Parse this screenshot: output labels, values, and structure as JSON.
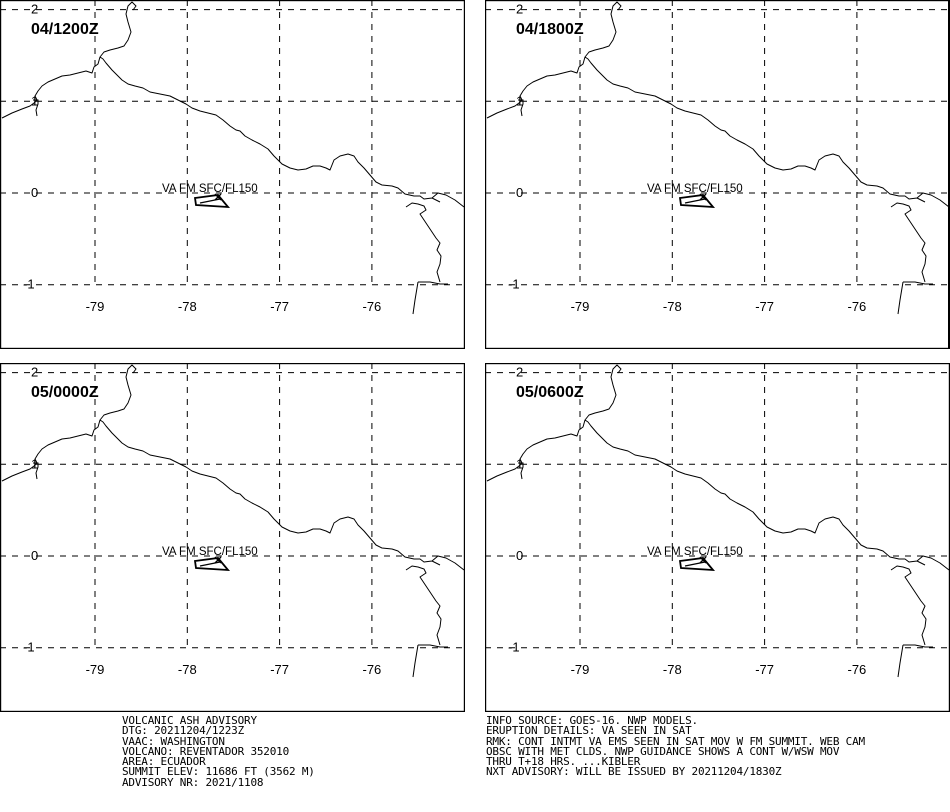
{
  "panels": [
    {
      "time_label": "04/1200Z",
      "ash_label": "VA FM SFC/FL150"
    },
    {
      "time_label": "04/1800Z",
      "ash_label": "VA FM SFC/FL150"
    },
    {
      "time_label": "05/0000Z",
      "ash_label": "VA FM SFC/FL150"
    },
    {
      "time_label": "05/0600Z",
      "ash_label": "VA FM SFC/FL150"
    }
  ],
  "grid": {
    "longitudes": [
      -79,
      -78,
      -77,
      -76
    ],
    "longitude_labels": [
      "-79",
      "-78",
      "-77",
      "-76"
    ],
    "latitudes": [
      2,
      1,
      0,
      -1
    ],
    "latitude_labels": [
      "2",
      "1",
      "0",
      "-1"
    ]
  },
  "advisory": {
    "left_lines": [
      "VOLCANIC ASH ADVISORY",
      "DTG: 20211204/1223Z",
      "VAAC: WASHINGTON",
      "VOLCANO: REVENTADOR 352010",
      "AREA: ECUADOR",
      "SUMMIT ELEV: 11686 FT (3562 M)",
      "ADVISORY NR: 2021/1108"
    ],
    "right_lines": [
      "INFO SOURCE: GOES-16. NWP MODELS.",
      "ERUPTION DETAILS: VA SEEN IN SAT",
      "RMK: CONT INTMT VA EMS SEEN IN SAT MOV W FM SUMMIT. WEB CAM",
      "OBSC WITH MET CLDS. NWP GUIDANCE SHOWS A CONT W/WSW MOV",
      "THRU T+18 HRS. ...KIBLER",
      "NXT ADVISORY: WILL BE ISSUED BY 20211204/1830Z"
    ]
  },
  "colors": {
    "line": "#000000",
    "background": "#ffffff"
  },
  "icons": {
    "volcano": "x-mark-icon"
  }
}
